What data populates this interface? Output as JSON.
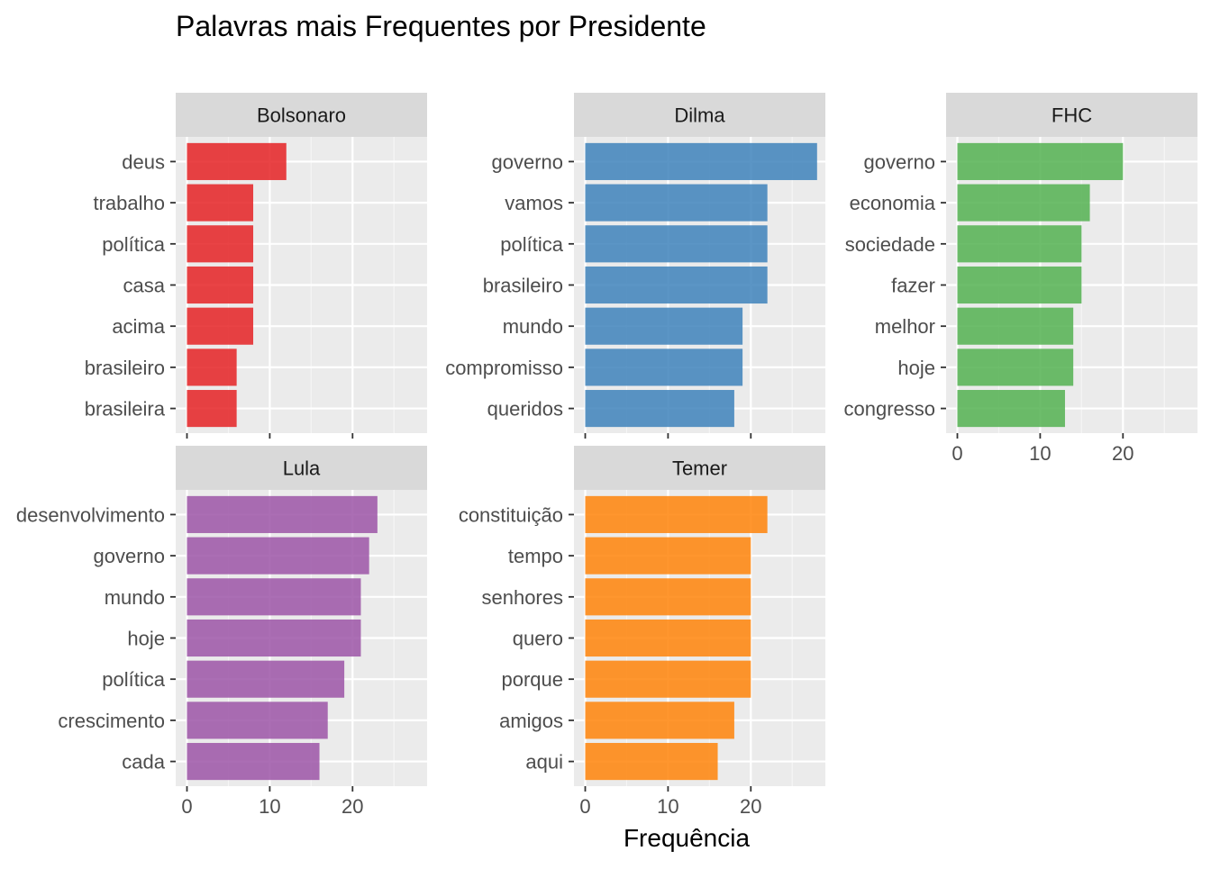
{
  "chart_data": {
    "type": "bar",
    "orientation": "horizontal",
    "title": "Palavras mais Frequentes por Presidente",
    "xlabel": "Frequência",
    "ylabel": "",
    "xlim": [
      0,
      29
    ],
    "x_ticks": [
      0,
      10,
      20
    ],
    "grid": true,
    "legend": "none",
    "facets": [
      {
        "name": "Bolsonaro",
        "color": "#E41A1C",
        "categories": [
          "deus",
          "trabalho",
          "política",
          "casa",
          "acima",
          "brasileiro",
          "brasileira"
        ],
        "values": [
          12,
          8,
          8,
          8,
          8,
          6,
          6
        ]
      },
      {
        "name": "Dilma",
        "color": "#377EB8",
        "categories": [
          "governo",
          "vamos",
          "política",
          "brasileiro",
          "mundo",
          "compromisso",
          "queridos"
        ],
        "values": [
          28,
          22,
          22,
          22,
          19,
          19,
          18
        ]
      },
      {
        "name": "FHC",
        "color": "#4DAF4A",
        "categories": [
          "governo",
          "economia",
          "sociedade",
          "fazer",
          "melhor",
          "hoje",
          "congresso"
        ],
        "values": [
          20,
          16,
          15,
          15,
          14,
          14,
          13
        ]
      },
      {
        "name": "Lula",
        "color": "#984EA3",
        "categories": [
          "desenvolvimento",
          "governo",
          "mundo",
          "hoje",
          "política",
          "crescimento",
          "cada"
        ],
        "values": [
          23,
          22,
          21,
          21,
          19,
          17,
          16
        ]
      },
      {
        "name": "Temer",
        "color": "#FF7F00",
        "categories": [
          "constituição",
          "tempo",
          "senhores",
          "quero",
          "porque",
          "amigos",
          "aqui"
        ],
        "values": [
          22,
          20,
          20,
          20,
          20,
          18,
          16
        ]
      }
    ]
  }
}
